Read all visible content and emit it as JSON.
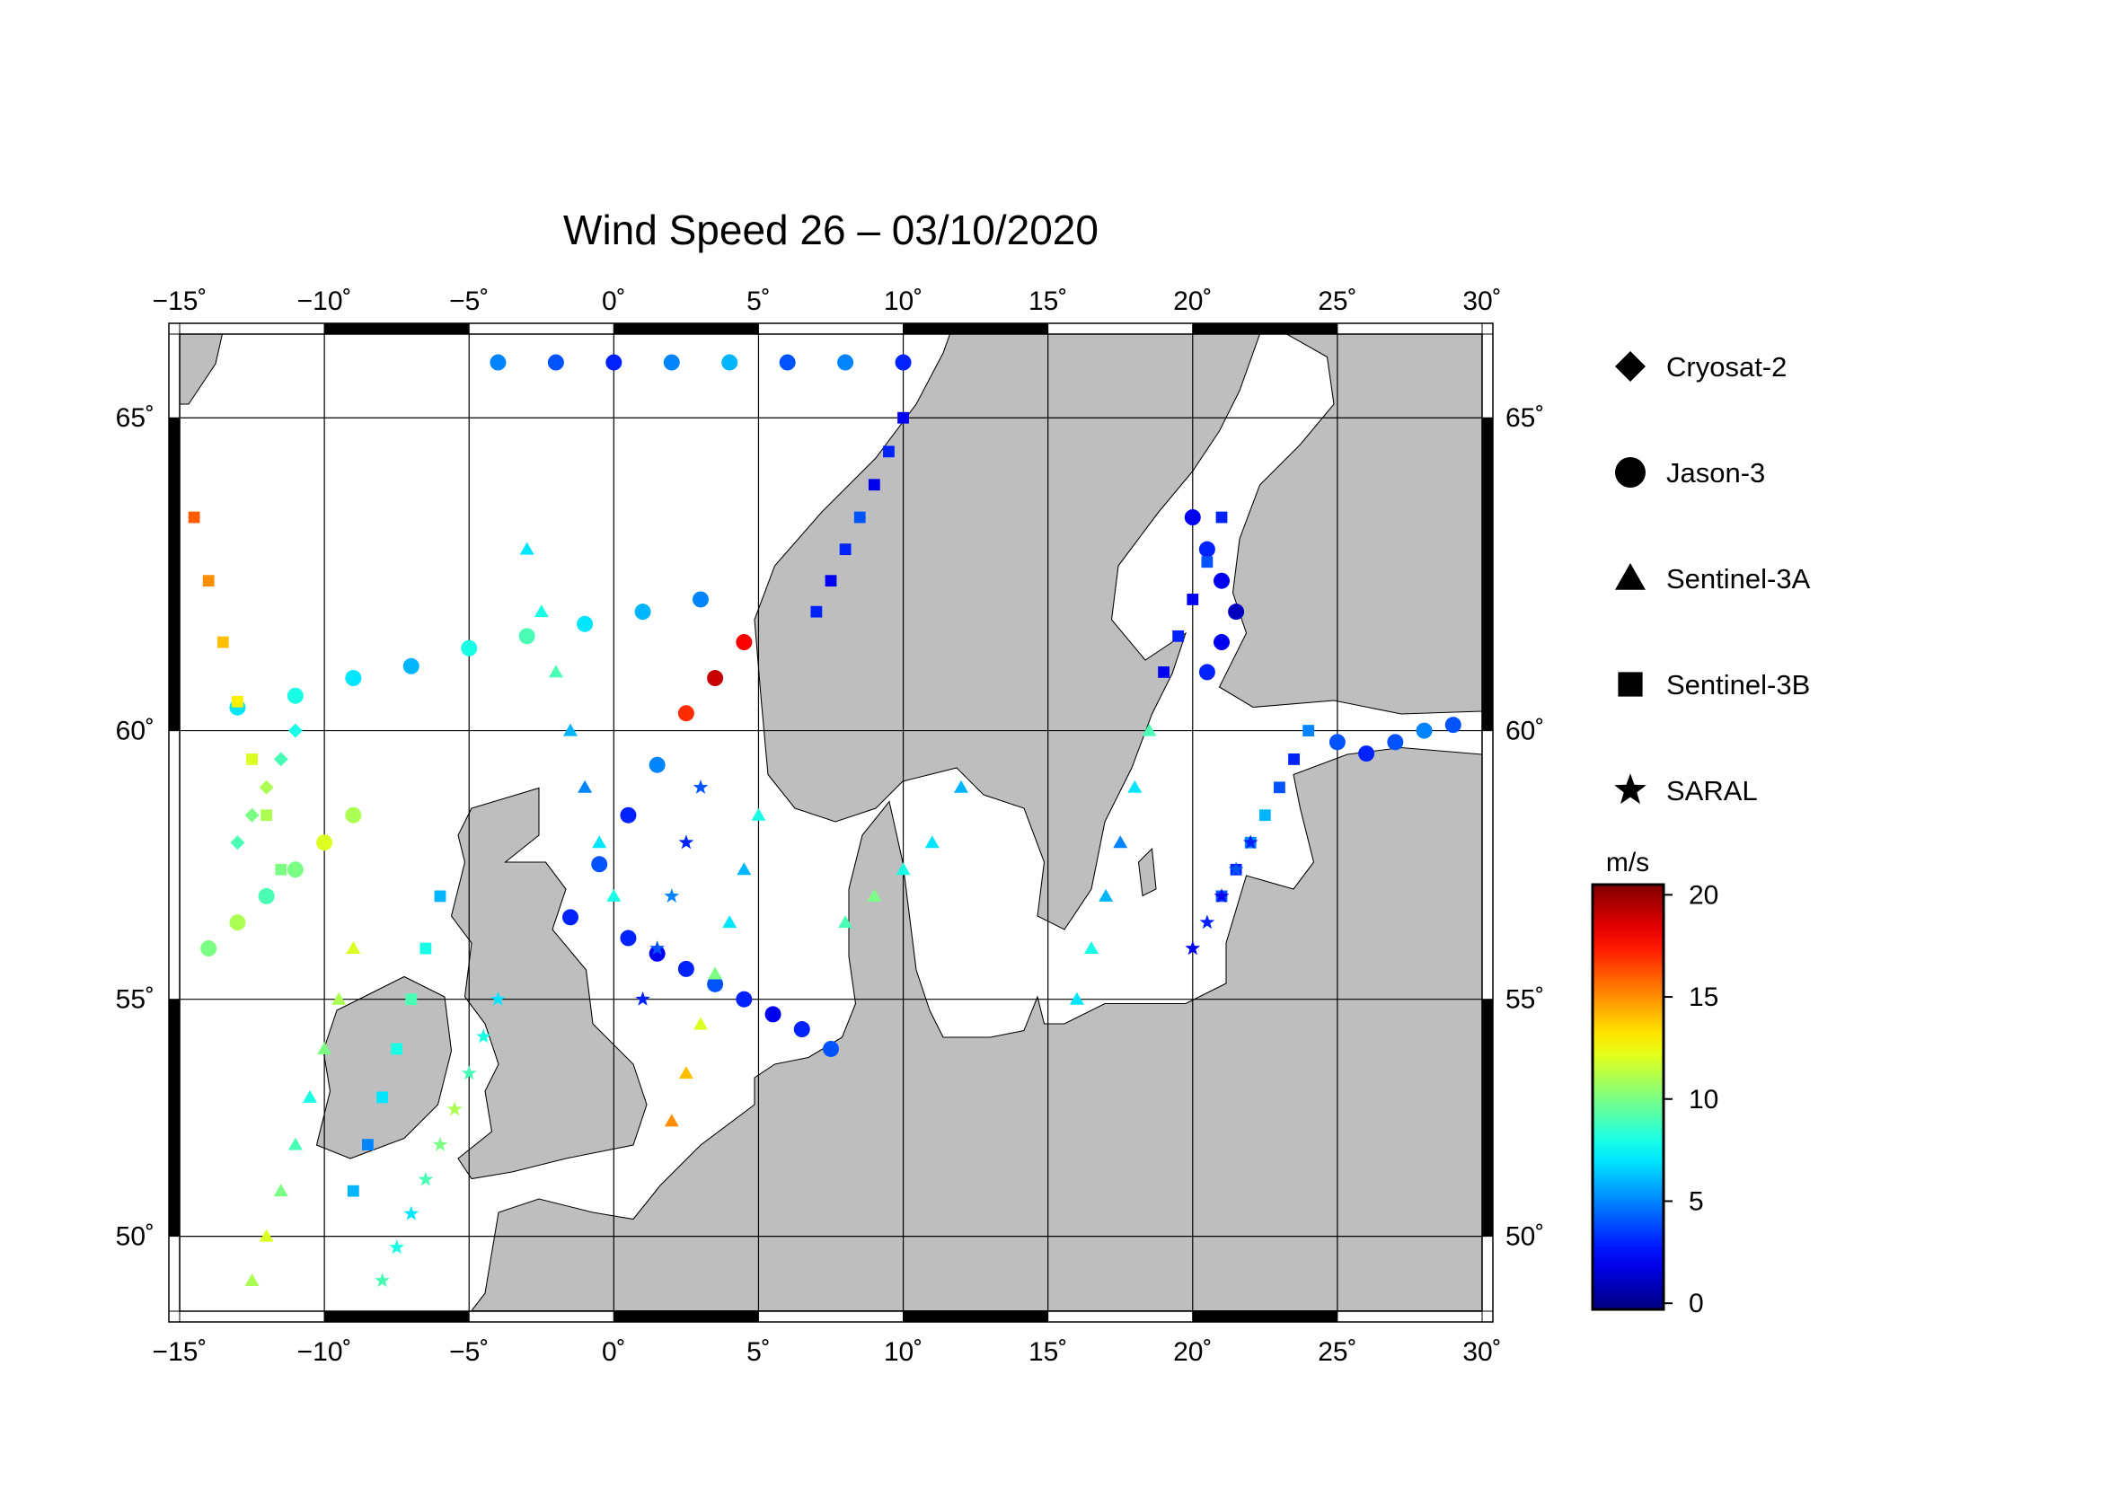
{
  "chart_data": {
    "type": "map",
    "title": "Wind Speed 26 – 03/10/2020",
    "projection": "mercator",
    "xlim": [
      -15,
      30
    ],
    "ylim": [
      48.3,
      66.2
    ],
    "xticks": [
      {
        "value": -15,
        "label": "−15˚"
      },
      {
        "value": -10,
        "label": "−10˚"
      },
      {
        "value": -5,
        "label": "−5˚"
      },
      {
        "value": 0,
        "label": "0˚"
      },
      {
        "value": 5,
        "label": "5˚"
      },
      {
        "value": 10,
        "label": "10˚"
      },
      {
        "value": 15,
        "label": "15˚"
      },
      {
        "value": 20,
        "label": "20˚"
      },
      {
        "value": 25,
        "label": "25˚"
      },
      {
        "value": 30,
        "label": "30˚"
      }
    ],
    "yticks": [
      {
        "value": 50,
        "label": "50˚"
      },
      {
        "value": 55,
        "label": "55˚"
      },
      {
        "value": 60,
        "label": "60˚"
      },
      {
        "value": 65,
        "label": "65˚"
      }
    ],
    "grid": true,
    "colorbar": {
      "label": "m/s",
      "colormap": "jet",
      "lim": [
        -0.3,
        20.5
      ],
      "ticks": [
        0,
        5,
        10,
        15,
        20
      ]
    },
    "series": [
      {
        "name": "Cryosat-2",
        "marker": "diamond",
        "x": [
          -13,
          -12.5,
          -12,
          -11.5,
          -11
        ],
        "y": [
          58,
          58.5,
          59,
          59.5,
          60
        ],
        "values": [
          9,
          10,
          11,
          9,
          8
        ]
      },
      {
        "name": "Jason-3",
        "marker": "circle",
        "x": [
          -1.5,
          -0.5,
          0.5,
          1.5,
          2.5,
          3.5,
          4.5,
          -4,
          -2,
          0,
          2,
          4,
          6,
          8,
          10,
          -13,
          -11,
          -9,
          -7,
          -5,
          -3,
          -1,
          1,
          3,
          0.5,
          1.5,
          2.5,
          3.5,
          4.5,
          5.5,
          6.5,
          7.5,
          25,
          26,
          27,
          28,
          29,
          20,
          20.5,
          21,
          21.5,
          21,
          20.5,
          -14,
          -13,
          -12,
          -11,
          -10,
          -9
        ],
        "y": [
          56.6,
          57.6,
          58.5,
          59.4,
          60.3,
          60.9,
          61.5,
          65.8,
          65.8,
          65.8,
          65.8,
          65.8,
          65.8,
          65.8,
          65.8,
          60.4,
          60.6,
          60.9,
          61.1,
          61.4,
          61.6,
          61.8,
          62.0,
          62.2,
          56.2,
          55.9,
          55.6,
          55.3,
          55.0,
          54.7,
          54.4,
          54.0,
          59.8,
          59.6,
          59.8,
          60.0,
          60.1,
          63.5,
          63.0,
          62.5,
          62.0,
          61.5,
          61.0,
          56.0,
          56.5,
          57.0,
          57.5,
          58.0,
          58.5
        ],
        "values": [
          3,
          4,
          3,
          5,
          17,
          19,
          18,
          5,
          4,
          3,
          5,
          6,
          4,
          5,
          3,
          7,
          8,
          7,
          6,
          8,
          9,
          7,
          6,
          5,
          3,
          2,
          3,
          4,
          3,
          2,
          3,
          4,
          4,
          3,
          4,
          5,
          4,
          2,
          3,
          2,
          1,
          2,
          3,
          10,
          11,
          9,
          10,
          12,
          11
        ]
      },
      {
        "name": "Sentinel-3A",
        "marker": "triangle",
        "x": [
          -12.5,
          -12,
          -11.5,
          -11,
          -10.5,
          -10,
          -9.5,
          -9,
          2,
          2.5,
          3,
          3.5,
          4,
          4.5,
          5,
          16,
          16.5,
          17,
          17.5,
          18,
          18.5,
          -3,
          -2.5,
          -2,
          -1.5,
          -1,
          -0.5,
          0,
          8,
          9,
          10,
          11,
          12
        ],
        "y": [
          49,
          50,
          51,
          52,
          53,
          54,
          55,
          56,
          52.5,
          53.5,
          54.5,
          55.5,
          56.5,
          57.5,
          58.5,
          55,
          56,
          57,
          58,
          59,
          60,
          63,
          62,
          61,
          60,
          59,
          58,
          57,
          56.5,
          57,
          57.5,
          58,
          59
        ],
        "values": [
          11,
          12,
          10,
          9,
          8,
          10,
          11,
          12,
          15,
          14,
          12,
          10,
          7,
          6,
          8,
          7,
          8,
          6,
          5,
          7,
          9,
          7,
          8,
          9,
          6,
          5,
          7,
          8,
          9,
          10,
          8,
          7,
          6
        ]
      },
      {
        "name": "Sentinel-3B",
        "marker": "square",
        "x": [
          -14.5,
          -14,
          -13.5,
          -13,
          -12.5,
          -12,
          -11.5,
          -9,
          -8.5,
          -8,
          -7.5,
          -7,
          -6.5,
          -6,
          21,
          21.5,
          22,
          22.5,
          23,
          23.5,
          24,
          19,
          19.5,
          20,
          20.5,
          21,
          7,
          7.5,
          8,
          8.5,
          9,
          9.5,
          10
        ],
        "y": [
          63.5,
          62.5,
          61.5,
          60.5,
          59.5,
          58.5,
          57.5,
          51,
          52,
          53,
          54,
          55,
          56,
          57,
          57,
          57.5,
          58,
          58.5,
          59,
          59.5,
          60,
          61,
          61.6,
          62.2,
          62.8,
          63.5,
          62,
          62.5,
          63,
          63.5,
          64,
          64.5,
          65
        ],
        "values": [
          16,
          15,
          14,
          13,
          12,
          11,
          10,
          6,
          5,
          7,
          8,
          9,
          8,
          6,
          4,
          3,
          5,
          6,
          4,
          3,
          5,
          2,
          3,
          2,
          4,
          3,
          3,
          2,
          3,
          4,
          2,
          3,
          2
        ]
      },
      {
        "name": "SARAL",
        "marker": "star",
        "x": [
          -8,
          -7.5,
          -7,
          -6.5,
          -6,
          -5.5,
          -5,
          -4.5,
          -4,
          1,
          1.5,
          2,
          2.5,
          3,
          20,
          20.5,
          21,
          21.5,
          22
        ],
        "y": [
          49,
          49.75,
          50.5,
          51.25,
          52,
          52.75,
          53.5,
          54.25,
          55,
          55,
          56,
          57,
          58,
          59,
          56,
          56.5,
          57,
          57.5,
          58
        ],
        "values": [
          9,
          8,
          7,
          9,
          10,
          11,
          9,
          8,
          7,
          3,
          4,
          5,
          3,
          4,
          2,
          3,
          2,
          4,
          3
        ]
      }
    ]
  }
}
